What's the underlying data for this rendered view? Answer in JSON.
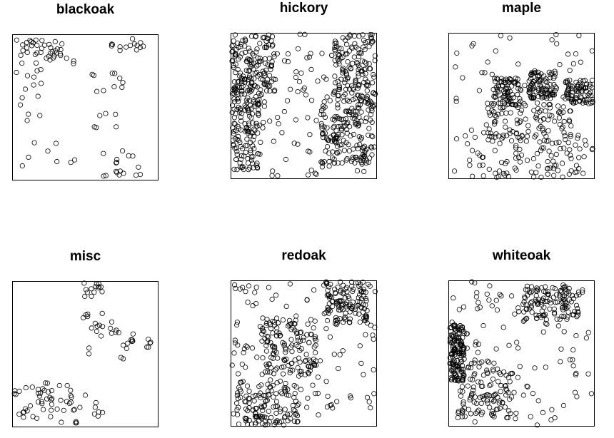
{
  "chart_data": [
    {
      "type": "scatter",
      "title": "blackoak",
      "points": [],
      "xlim": [
        0,
        1
      ],
      "ylim": [
        0,
        1
      ]
    },
    {
      "type": "scatter",
      "title": "hickory",
      "points": [],
      "xlim": [
        0,
        1
      ],
      "ylim": [
        0,
        1
      ]
    },
    {
      "type": "scatter",
      "title": "maple",
      "points": [],
      "xlim": [
        0,
        1
      ],
      "ylim": [
        0,
        1
      ]
    },
    {
      "type": "scatter",
      "title": "misc",
      "points": [],
      "xlim": [
        0,
        1
      ],
      "ylim": [
        0,
        1
      ]
    },
    {
      "type": "scatter",
      "title": "redoak",
      "points": [],
      "xlim": [
        0,
        1
      ],
      "ylim": [
        0,
        1
      ]
    },
    {
      "type": "scatter",
      "title": "whiteoak",
      "points": [],
      "xlim": [
        0,
        1
      ],
      "ylim": [
        0,
        1
      ]
    }
  ]
}
